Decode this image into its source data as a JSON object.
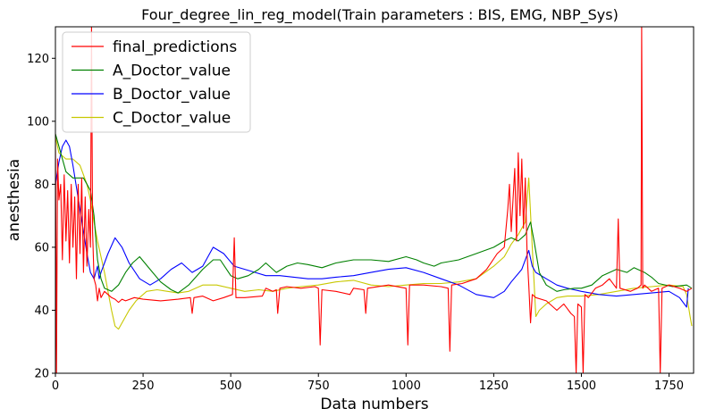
{
  "chart_data": {
    "type": "line",
    "title": "Four_degree_lin_reg_model(Train parameters : BIS, EMG, NBP_Sys)",
    "xlabel": "Data numbers",
    "ylabel": "anesthesia",
    "xlim": [
      0,
      1820
    ],
    "ylim": [
      20,
      130
    ],
    "xticks": [
      0,
      250,
      500,
      750,
      1000,
      1250,
      1500,
      1750
    ],
    "yticks": [
      20,
      40,
      60,
      80,
      100,
      120
    ],
    "legend_position": "upper-left",
    "series": [
      {
        "name": "final_predictions",
        "color": "#ff0000",
        "x": [
          0,
          3,
          6,
          10,
          15,
          20,
          25,
          30,
          35,
          40,
          45,
          50,
          55,
          60,
          65,
          70,
          75,
          80,
          85,
          90,
          95,
          100,
          103,
          106,
          110,
          115,
          120,
          125,
          130,
          140,
          150,
          160,
          170,
          180,
          190,
          200,
          225,
          250,
          300,
          350,
          385,
          390,
          395,
          420,
          450,
          480,
          505,
          510,
          515,
          540,
          590,
          600,
          620,
          630,
          634,
          640,
          660,
          700,
          740,
          750,
          755,
          760,
          800,
          840,
          850,
          880,
          885,
          890,
          950,
          1000,
          1005,
          1010,
          1050,
          1100,
          1120,
          1125,
          1130,
          1160,
          1200,
          1230,
          1260,
          1280,
          1290,
          1295,
          1300,
          1310,
          1315,
          1320,
          1325,
          1330,
          1335,
          1340,
          1345,
          1350,
          1355,
          1360,
          1370,
          1400,
          1430,
          1450,
          1470,
          1480,
          1485,
          1490,
          1500,
          1505,
          1510,
          1520,
          1540,
          1560,
          1580,
          1600,
          1605,
          1610,
          1640,
          1660,
          1670,
          1672,
          1675,
          1680,
          1700,
          1720,
          1725,
          1730,
          1750,
          1780,
          1800,
          1815
        ],
        "values": [
          96,
          20,
          88,
          75,
          80,
          56,
          83,
          62,
          78,
          55,
          80,
          60,
          76,
          50,
          80,
          58,
          82,
          52,
          76,
          54,
          72,
          60,
          130,
          65,
          50,
          48,
          43,
          47,
          44,
          46,
          45,
          44,
          43.5,
          42.5,
          43.5,
          43,
          44,
          43.5,
          43,
          43.5,
          44,
          39,
          44,
          44.5,
          43,
          44,
          45,
          63,
          44,
          44,
          44.5,
          47,
          46,
          46.5,
          39,
          47,
          47.5,
          47,
          47.5,
          47,
          29,
          46.5,
          46,
          45,
          47,
          46.5,
          39,
          47,
          48,
          47,
          29,
          48,
          48,
          47.5,
          47,
          27,
          48,
          48.5,
          50,
          53,
          58,
          60,
          72,
          80,
          65,
          85,
          62,
          90,
          70,
          88,
          66,
          82,
          58,
          48,
          36,
          45,
          44,
          43,
          40,
          42,
          39,
          38,
          20,
          42,
          41,
          20,
          45,
          44,
          47,
          48,
          50,
          47,
          69,
          47,
          46,
          47,
          48,
          130,
          47,
          48,
          46,
          47,
          20,
          47,
          48,
          47,
          46,
          47
        ]
      },
      {
        "name": "A_Doctor_value",
        "color": "#008000",
        "x": [
          0,
          5,
          15,
          30,
          50,
          80,
          100,
          110,
          120,
          130,
          140,
          160,
          180,
          200,
          220,
          240,
          270,
          300,
          330,
          350,
          380,
          420,
          450,
          470,
          500,
          520,
          550,
          580,
          600,
          630,
          660,
          690,
          720,
          760,
          800,
          850,
          900,
          950,
          1000,
          1030,
          1050,
          1080,
          1100,
          1150,
          1200,
          1250,
          1280,
          1300,
          1320,
          1340,
          1355,
          1365,
          1380,
          1400,
          1430,
          1450,
          1480,
          1500,
          1530,
          1560,
          1600,
          1630,
          1650,
          1680,
          1700,
          1720,
          1760,
          1800,
          1815
        ],
        "values": [
          96,
          94,
          90,
          84,
          82,
          82,
          78,
          70,
          56,
          50,
          47,
          46,
          48,
          52,
          55,
          57,
          53,
          49,
          46.5,
          45.5,
          48,
          53,
          56,
          56,
          51,
          50,
          51,
          53,
          55,
          52,
          54,
          55,
          54.5,
          53.5,
          55,
          56,
          56,
          55.5,
          57,
          56,
          55,
          54,
          55,
          56,
          58,
          60,
          62,
          63,
          62,
          64,
          68,
          62,
          52,
          48,
          46,
          46.5,
          47,
          47,
          48,
          51,
          53,
          52,
          53.5,
          52,
          50.5,
          48.5,
          47.5,
          48,
          47
        ]
      },
      {
        "name": "B_Doctor_value",
        "color": "#0000ff",
        "x": [
          0,
          10,
          20,
          30,
          40,
          50,
          70,
          90,
          100,
          110,
          115,
          120,
          125,
          130,
          150,
          170,
          190,
          210,
          240,
          270,
          300,
          330,
          360,
          390,
          420,
          450,
          480,
          510,
          540,
          570,
          600,
          640,
          680,
          720,
          760,
          800,
          850,
          900,
          950,
          1000,
          1050,
          1100,
          1150,
          1200,
          1250,
          1280,
          1300,
          1330,
          1350,
          1360,
          1370,
          1400,
          1430,
          1460,
          1500,
          1550,
          1600,
          1650,
          1700,
          1750,
          1780,
          1800,
          1805
        ],
        "values": [
          80,
          87,
          92,
          94,
          92,
          86,
          72,
          58,
          52,
          50,
          52,
          54,
          50,
          52,
          58,
          63,
          60,
          55,
          50,
          48,
          50,
          53,
          55,
          52,
          54,
          60,
          58,
          54,
          53,
          52,
          51,
          51,
          50.5,
          50,
          50,
          50.5,
          51,
          52,
          53,
          53.5,
          52,
          50,
          48,
          45,
          44,
          46,
          49,
          53,
          59,
          54,
          52,
          50,
          48,
          47,
          46,
          45,
          44.5,
          45,
          45.5,
          46,
          44,
          41,
          47
        ]
      },
      {
        "name": "C_Doctor_value",
        "color": "#c8c800",
        "x": [
          0,
          10,
          30,
          50,
          70,
          90,
          100,
          110,
          120,
          130,
          140,
          150,
          160,
          170,
          180,
          190,
          210,
          230,
          260,
          290,
          320,
          350,
          380,
          420,
          460,
          500,
          540,
          580,
          620,
          660,
          700,
          750,
          800,
          850,
          900,
          950,
          1000,
          1050,
          1100,
          1150,
          1200,
          1250,
          1280,
          1300,
          1320,
          1340,
          1350,
          1360,
          1370,
          1380,
          1400,
          1430,
          1460,
          1500,
          1550,
          1600,
          1650,
          1700,
          1750,
          1790,
          1800,
          1810,
          1815
        ],
        "values": [
          95,
          90,
          88,
          88,
          86,
          80,
          75,
          68,
          62,
          57,
          52,
          46,
          40,
          35,
          34,
          36,
          40,
          43,
          46,
          46.5,
          46,
          45.5,
          46,
          48,
          48,
          47,
          46,
          46.5,
          46,
          47,
          47.5,
          48,
          49,
          49.5,
          48,
          47.5,
          48,
          48.5,
          48.5,
          49,
          50,
          54,
          57,
          61,
          64,
          68,
          82,
          60,
          38,
          40,
          42,
          44,
          44.5,
          44.5,
          45,
          46,
          47,
          47.5,
          48,
          47.5,
          45,
          38,
          35
        ]
      }
    ]
  }
}
